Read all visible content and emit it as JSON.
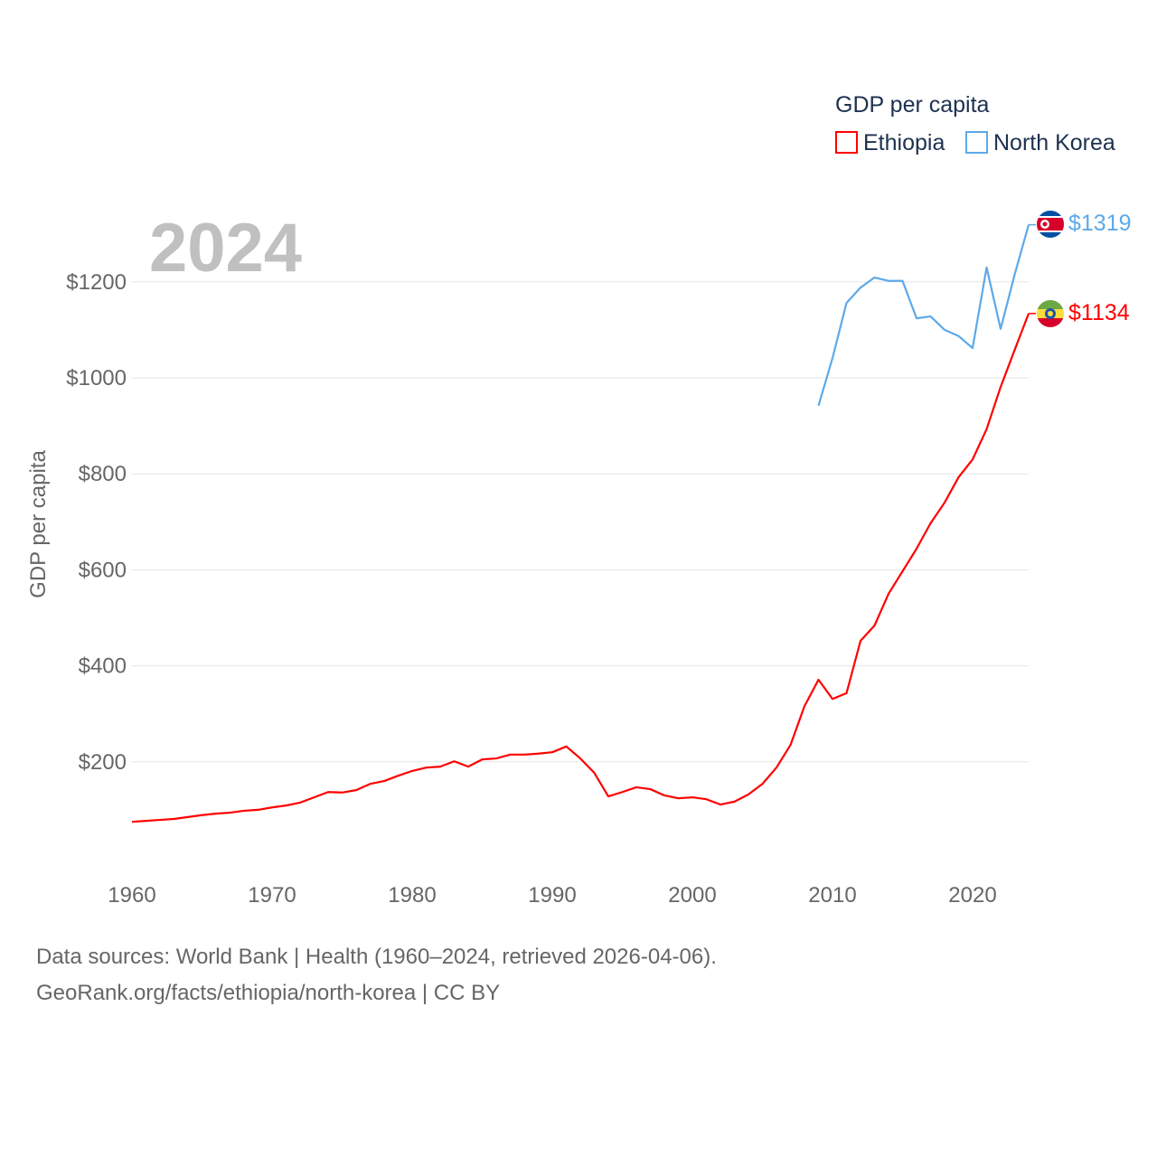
{
  "chart_data": {
    "type": "line",
    "title": "",
    "year_label": "2024",
    "xlabel": "",
    "ylabel": "GDP per capita",
    "xlim": [
      1960,
      2024
    ],
    "ylim": [
      0,
      1320
    ],
    "x_ticks": [
      1960,
      1970,
      1980,
      1990,
      2000,
      2010,
      2020
    ],
    "x_tick_labels": [
      "1960",
      "1970",
      "1980",
      "1990",
      "2000",
      "2010",
      "2020"
    ],
    "y_ticks": [
      200,
      400,
      600,
      800,
      1000,
      1200
    ],
    "y_tick_labels": [
      "$200",
      "$400",
      "$600",
      "$800",
      "$1000",
      "$1200"
    ],
    "grid": true,
    "legend": {
      "title": "GDP per capita",
      "placement": "top-right"
    },
    "series": [
      {
        "name": "Ethiopia",
        "color": "#ff0000",
        "flag": "ethiopia-flag",
        "end_label": "$1134",
        "x": [
          1960,
          1961,
          1962,
          1963,
          1964,
          1965,
          1966,
          1967,
          1968,
          1969,
          1970,
          1971,
          1972,
          1973,
          1974,
          1975,
          1976,
          1977,
          1978,
          1979,
          1980,
          1981,
          1982,
          1983,
          1984,
          1985,
          1986,
          1987,
          1988,
          1989,
          1990,
          1991,
          1992,
          1993,
          1994,
          1995,
          1996,
          1997,
          1998,
          1999,
          2000,
          2001,
          2002,
          2003,
          2004,
          2005,
          2006,
          2007,
          2008,
          2009,
          2010,
          2011,
          2012,
          2013,
          2014,
          2015,
          2016,
          2017,
          2018,
          2019,
          2020,
          2021,
          2022,
          2023,
          2024
        ],
        "values": [
          75,
          77,
          79,
          81,
          85,
          89,
          92,
          94,
          98,
          100,
          105,
          109,
          115,
          126,
          137,
          136,
          141,
          154,
          160,
          171,
          181,
          188,
          190,
          201,
          190,
          205,
          207,
          215,
          215,
          217,
          220,
          232,
          207,
          177,
          128,
          137,
          147,
          143,
          130,
          124,
          126,
          122,
          111,
          117,
          132,
          154,
          188,
          235,
          316,
          371,
          331,
          343,
          452,
          484,
          550,
          597,
          644,
          697,
          740,
          793,
          830,
          893,
          981,
          1058,
          1134
        ]
      },
      {
        "name": "North Korea",
        "color": "#5da9e9",
        "flag": "north-korea-flag",
        "end_label": "$1319",
        "x": [
          2009,
          2010,
          2011,
          2012,
          2013,
          2014,
          2015,
          2016,
          2017,
          2018,
          2019,
          2020,
          2021,
          2022,
          2023,
          2024
        ],
        "values": [
          942,
          1041,
          1156,
          1188,
          1209,
          1202,
          1202,
          1124,
          1128,
          1100,
          1087,
          1062,
          1230,
          1102,
          1215,
          1319
        ]
      }
    ]
  },
  "footer": {
    "line1": "Data sources: World Bank | Health (1960–2024, retrieved 2026-04-06).",
    "line2": "GeoRank.org/facts/ethiopia/north-korea | CC BY"
  }
}
